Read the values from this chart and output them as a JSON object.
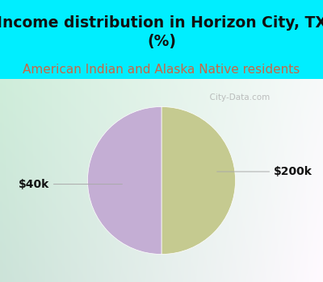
{
  "title": "Income distribution in Horizon City, TX\n(%)",
  "subtitle": "American Indian and Alaska Native residents",
  "slices": [
    50.0,
    50.0
  ],
  "labels": [
    "$40k",
    "$200k"
  ],
  "colors": [
    "#c5ca90",
    "#c4aed4"
  ],
  "bg_cyan": "#00eeff",
  "label_line_color": "#aaaaaa",
  "title_fontsize": 13.5,
  "subtitle_fontsize": 11,
  "subtitle_color": "#cc6644",
  "watermark_text": "  City-Data.com",
  "watermark_color": "#aaaaaa",
  "label_fontsize": 10,
  "label_color": "#111111"
}
